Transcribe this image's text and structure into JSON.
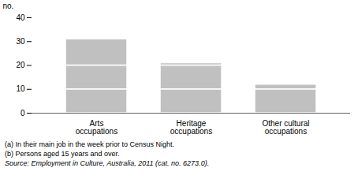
{
  "chart_data": {
    "type": "bar",
    "stacked": true,
    "categories": [
      "Arts\noccupations",
      "Heritage\noccupations",
      "Other cultural\noccupations"
    ],
    "series": [
      {
        "values": [
          10,
          10,
          10
        ]
      },
      {
        "values": [
          10,
          10,
          2
        ]
      },
      {
        "values": [
          11,
          1,
          null
        ]
      }
    ],
    "color": "#c0c0c0",
    "ylabel": "no.",
    "ylim": [
      0,
      40
    ],
    "yticks": [
      0,
      10,
      20,
      30,
      40
    ],
    "grid": false,
    "annotations": [
      "(a) In their main job in the week prior to Census Night.",
      "(b) Persons aged 15 years and over.",
      "Source: Employment in Culture, Australia, 2011 (cat. no. 6273.0)."
    ]
  }
}
